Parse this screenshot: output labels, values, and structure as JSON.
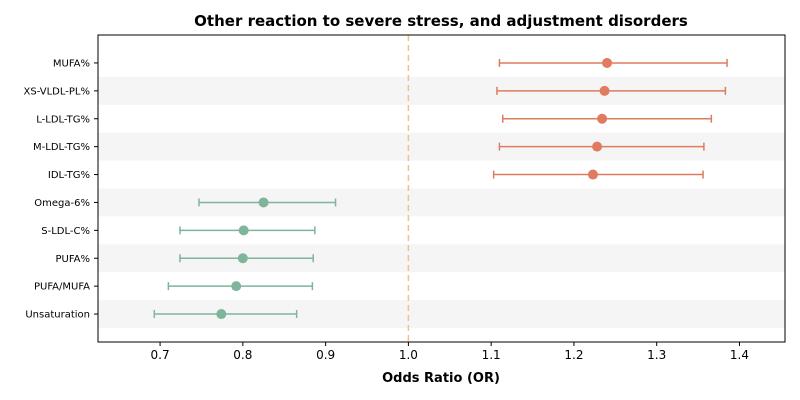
{
  "chart_data": {
    "type": "forest",
    "title": "Other reaction to severe stress, and adjustment disorders",
    "xlabel": "Odds Ratio (OR)",
    "ylabel": "",
    "xlim": [
      0.625,
      1.455
    ],
    "x_ticks": [
      0.7,
      0.8,
      0.9,
      1.0,
      1.1,
      1.2,
      1.3,
      1.4
    ],
    "x_tick_labels": [
      "0.7",
      "0.8",
      "0.9",
      "1.0",
      "1.1",
      "1.2",
      "1.3",
      "1.4"
    ],
    "reference_line": 1.0,
    "grid": false,
    "alternating_row_shading": true,
    "colors": {
      "positive": "#e07b5f",
      "negative": "#7fb59b",
      "reference": "#f5c08a",
      "row_shade": "#f5f5f5"
    },
    "rows": [
      {
        "label": "MUFA%",
        "or": 1.24,
        "lo": 1.11,
        "hi": 1.385,
        "group": "positive"
      },
      {
        "label": "XS-VLDL-PL%",
        "or": 1.237,
        "lo": 1.107,
        "hi": 1.383,
        "group": "positive"
      },
      {
        "label": "L-LDL-TG%",
        "or": 1.234,
        "lo": 1.114,
        "hi": 1.366,
        "group": "positive"
      },
      {
        "label": "M-LDL-TG%",
        "or": 1.228,
        "lo": 1.11,
        "hi": 1.357,
        "group": "positive"
      },
      {
        "label": "IDL-TG%",
        "or": 1.223,
        "lo": 1.103,
        "hi": 1.356,
        "group": "positive"
      },
      {
        "label": "Omega-6%",
        "or": 0.825,
        "lo": 0.747,
        "hi": 0.912,
        "group": "negative"
      },
      {
        "label": "S-LDL-C%",
        "or": 0.801,
        "lo": 0.724,
        "hi": 0.887,
        "group": "negative"
      },
      {
        "label": "PUFA%",
        "or": 0.8,
        "lo": 0.724,
        "hi": 0.885,
        "group": "negative"
      },
      {
        "label": "PUFA/MUFA",
        "or": 0.792,
        "lo": 0.71,
        "hi": 0.884,
        "group": "negative"
      },
      {
        "label": "Unsaturation",
        "or": 0.774,
        "lo": 0.693,
        "hi": 0.865,
        "group": "negative"
      }
    ]
  }
}
